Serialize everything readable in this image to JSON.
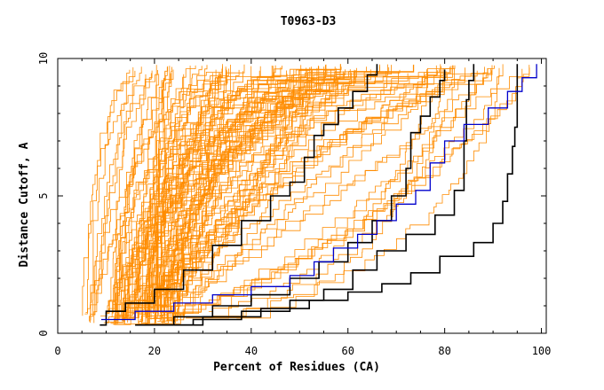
{
  "chart_data": {
    "type": "line",
    "title": "T0963-D3",
    "xlabel": "Percent of Residues (CA)",
    "ylabel": "Distance Cutoff, A",
    "xlim": [
      0,
      101
    ],
    "ylim": [
      0,
      10
    ],
    "x_ticks": [
      0,
      20,
      40,
      60,
      80,
      100
    ],
    "y_ticks": [
      0,
      5,
      10
    ],
    "grid": false,
    "legend": "none",
    "background_model_count": 120,
    "colors": {
      "background_models": "#ff8c00",
      "highlight_black": "#000000",
      "highlight_blue": "#0000cc"
    },
    "highlighted_series": [
      {
        "color": "#000000",
        "points": [
          [
            8.7,
            0.3
          ],
          [
            10,
            0.8
          ],
          [
            14,
            1.1
          ],
          [
            20,
            1.6
          ],
          [
            26,
            2.3
          ],
          [
            32,
            3.2
          ],
          [
            38,
            4.1
          ],
          [
            44,
            5.0
          ],
          [
            48,
            5.5
          ],
          [
            51,
            6.4
          ],
          [
            53,
            7.2
          ],
          [
            55,
            7.6
          ],
          [
            58,
            8.2
          ],
          [
            61,
            8.8
          ],
          [
            64,
            9.4
          ],
          [
            66,
            9.8
          ]
        ]
      },
      {
        "color": "#000000",
        "points": [
          [
            17,
            0.3
          ],
          [
            24,
            0.6
          ],
          [
            32,
            1.0
          ],
          [
            40,
            1.4
          ],
          [
            48,
            2.0
          ],
          [
            54,
            2.6
          ],
          [
            60,
            3.3
          ],
          [
            65,
            4.1
          ],
          [
            69,
            5.0
          ],
          [
            72,
            6.0
          ],
          [
            73,
            7.3
          ],
          [
            75,
            7.9
          ],
          [
            77,
            8.6
          ],
          [
            79,
            9.2
          ],
          [
            80,
            9.6
          ]
        ]
      },
      {
        "color": "#000000",
        "points": [
          [
            18,
            0.3
          ],
          [
            28,
            0.5
          ],
          [
            38,
            0.8
          ],
          [
            48,
            1.2
          ],
          [
            55,
            1.6
          ],
          [
            61,
            2.3
          ],
          [
            66,
            3.0
          ],
          [
            72,
            3.6
          ],
          [
            78,
            4.3
          ],
          [
            82,
            5.2
          ],
          [
            84,
            6.0
          ],
          [
            84,
            7.0
          ],
          [
            84.5,
            8.5
          ],
          [
            85,
            9.2
          ],
          [
            86,
            9.8
          ]
        ]
      },
      {
        "color": "#000000",
        "points": [
          [
            16,
            0.3
          ],
          [
            30,
            0.6
          ],
          [
            42,
            0.9
          ],
          [
            52,
            1.2
          ],
          [
            60,
            1.5
          ],
          [
            67,
            1.8
          ],
          [
            73,
            2.2
          ],
          [
            79,
            2.8
          ],
          [
            86,
            3.3
          ],
          [
            90,
            4.0
          ],
          [
            92,
            4.8
          ],
          [
            93,
            5.8
          ],
          [
            94,
            6.8
          ],
          [
            94.5,
            7.5
          ],
          [
            95,
            8.5
          ],
          [
            95,
            9.8
          ]
        ]
      },
      {
        "color": "#0000cc",
        "points": [
          [
            9,
            0.5
          ],
          [
            16,
            0.8
          ],
          [
            24,
            1.1
          ],
          [
            32,
            1.4
          ],
          [
            40,
            1.7
          ],
          [
            48,
            2.1
          ],
          [
            53,
            2.6
          ],
          [
            57,
            3.1
          ],
          [
            62,
            3.6
          ],
          [
            66,
            4.1
          ],
          [
            70,
            4.7
          ],
          [
            74,
            5.2
          ],
          [
            77,
            6.2
          ],
          [
            80,
            7.0
          ],
          [
            84,
            7.6
          ],
          [
            89,
            8.2
          ],
          [
            93,
            8.8
          ],
          [
            96,
            9.3
          ],
          [
            99,
            9.8
          ]
        ]
      }
    ]
  }
}
